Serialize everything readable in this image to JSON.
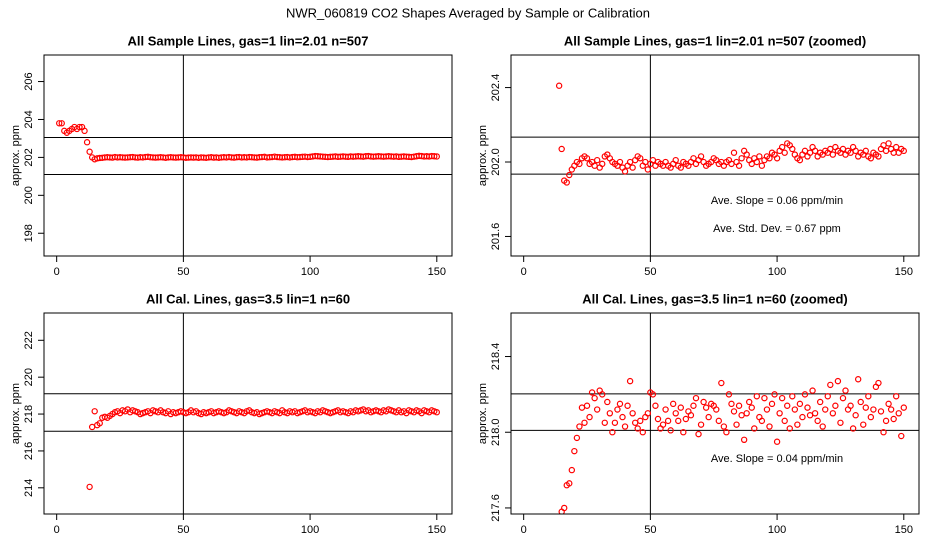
{
  "title": "NWR_060819  CO2 Shapes Averaged by Sample or Calibration",
  "chart_data": [
    {
      "type": "scatter",
      "title": "All Sample Lines, gas=1 lin=2.01 n=507",
      "ylabel": "approx. ppm",
      "color": "#ff0000",
      "xlim": [
        -5,
        156
      ],
      "ylim": [
        196.8,
        207.4
      ],
      "xticks": [
        0,
        50,
        100,
        150
      ],
      "yticks": [
        198,
        200,
        202,
        204,
        206
      ],
      "hlines": [
        203.05,
        201.1
      ],
      "vline": 50,
      "x": [
        1,
        2,
        3,
        4,
        5,
        6,
        7,
        8,
        9,
        10,
        11,
        12,
        13,
        14,
        15,
        16,
        17,
        18,
        19,
        20,
        21,
        22,
        23,
        24,
        25,
        26,
        27,
        28,
        29,
        30,
        31,
        32,
        33,
        34,
        35,
        36,
        37,
        38,
        39,
        40,
        41,
        42,
        43,
        44,
        45,
        46,
        47,
        48,
        49,
        50,
        51,
        52,
        53,
        54,
        55,
        56,
        57,
        58,
        59,
        60,
        61,
        62,
        63,
        64,
        65,
        66,
        67,
        68,
        69,
        70,
        71,
        72,
        73,
        74,
        75,
        76,
        77,
        78,
        79,
        80,
        81,
        82,
        83,
        84,
        85,
        86,
        87,
        88,
        89,
        90,
        91,
        92,
        93,
        94,
        95,
        96,
        97,
        98,
        99,
        100,
        101,
        102,
        103,
        104,
        105,
        106,
        107,
        108,
        109,
        110,
        111,
        112,
        113,
        114,
        115,
        116,
        117,
        118,
        119,
        120,
        121,
        122,
        123,
        124,
        125,
        126,
        127,
        128,
        129,
        130,
        131,
        132,
        133,
        134,
        135,
        136,
        137,
        138,
        139,
        140,
        141,
        142,
        143,
        144,
        145,
        146,
        147,
        148,
        149,
        150
      ],
      "values": [
        203.8,
        203.8,
        203.4,
        203.3,
        203.4,
        203.5,
        203.6,
        203.5,
        203.6,
        203.6,
        203.4,
        202.8,
        202.3,
        202.0,
        201.9,
        201.95,
        201.97,
        201.98,
        202.0,
        202.01,
        202.0,
        201.99,
        202.02,
        202.0,
        202.01,
        202.0,
        201.99,
        202.0,
        202.01,
        202.02,
        202.0,
        201.99,
        202.01,
        202.0,
        202.02,
        202.03,
        202.01,
        202.0,
        201.99,
        202.0,
        202.01,
        202.0,
        201.98,
        202.0,
        202.01,
        202.0,
        201.99,
        202.0,
        202.01,
        202.0,
        201.98,
        201.99,
        202.0,
        201.99,
        202.0,
        201.98,
        202.0,
        201.99,
        201.98,
        202.0,
        202.01,
        201.99,
        202.0,
        201.98,
        202.0,
        202.01,
        202.0,
        202.02,
        202.0,
        201.99,
        202.01,
        202.02,
        202.0,
        202.01,
        202.0,
        202.02,
        202.01,
        202.0,
        201.99,
        202.01,
        202.02,
        202.03,
        202.0,
        202.01,
        202.02,
        202.04,
        202.02,
        202.01,
        202.0,
        202.01,
        202.02,
        202.0,
        202.02,
        202.03,
        202.01,
        202.02,
        202.03,
        202.04,
        202.02,
        202.03,
        202.05,
        202.07,
        202.06,
        202.05,
        202.04,
        202.03,
        202.02,
        202.03,
        202.04,
        202.05,
        202.03,
        202.04,
        202.05,
        202.04,
        202.03,
        202.05,
        202.04,
        202.05,
        202.06,
        202.05,
        202.04,
        202.06,
        202.07,
        202.05,
        202.04,
        202.05,
        202.06,
        202.05,
        202.04,
        202.05,
        202.06,
        202.05,
        202.04,
        202.05,
        202.03,
        202.04,
        202.05,
        202.04,
        202.03,
        202.02,
        202.04,
        202.06,
        202.08,
        202.07,
        202.05,
        202.06,
        202.05,
        202.07,
        202.06,
        202.05
      ]
    },
    {
      "type": "scatter",
      "title": "All Sample Lines, gas=1 lin=2.01 n=507 (zoomed)",
      "ylabel": "approx. ppm",
      "color": "#ff0000",
      "xlim": [
        -5,
        156
      ],
      "ylim": [
        201.495,
        202.575
      ],
      "xticks": [
        0,
        50,
        100,
        150
      ],
      "yticks": [
        201.6,
        {
          "value": 202,
          "label": "202.0"
        },
        202.4
      ],
      "hlines": [
        202.134,
        201.935
      ],
      "vline": 50,
      "annotations": [
        "Ave. Slope =  0.06  ppm/min",
        "Ave. Std. Dev. =  0.67  ppm"
      ],
      "x": [
        14,
        15,
        16,
        17,
        18,
        19,
        20,
        21,
        22,
        23,
        24,
        25,
        26,
        27,
        28,
        29,
        30,
        31,
        32,
        33,
        34,
        35,
        36,
        37,
        38,
        39,
        40,
        41,
        42,
        43,
        44,
        45,
        46,
        47,
        48,
        49,
        50,
        51,
        52,
        53,
        54,
        55,
        56,
        57,
        58,
        59,
        60,
        61,
        62,
        63,
        64,
        65,
        66,
        67,
        68,
        69,
        70,
        71,
        72,
        73,
        74,
        75,
        76,
        77,
        78,
        79,
        80,
        81,
        82,
        83,
        84,
        85,
        86,
        87,
        88,
        89,
        90,
        91,
        92,
        93,
        94,
        95,
        96,
        97,
        98,
        99,
        100,
        101,
        102,
        103,
        104,
        105,
        106,
        107,
        108,
        109,
        110,
        111,
        112,
        113,
        114,
        115,
        116,
        117,
        118,
        119,
        120,
        121,
        122,
        123,
        124,
        125,
        126,
        127,
        128,
        129,
        130,
        131,
        132,
        133,
        134,
        135,
        136,
        137,
        138,
        139,
        140,
        141,
        142,
        143,
        144,
        145,
        146,
        147,
        148,
        149,
        150
      ],
      "values": [
        202.41,
        202.07,
        201.9,
        201.89,
        201.93,
        201.96,
        201.98,
        202.0,
        201.99,
        202.02,
        202.03,
        202.02,
        201.99,
        202.0,
        201.98,
        202.01,
        201.97,
        201.99,
        202.03,
        202.04,
        202.02,
        202.0,
        201.99,
        201.98,
        202.0,
        201.97,
        201.95,
        201.98,
        202.0,
        201.97,
        202.01,
        202.03,
        202.02,
        201.98,
        202.0,
        201.96,
        201.99,
        202.01,
        201.98,
        202.0,
        201.99,
        201.98,
        202.0,
        201.98,
        201.97,
        201.99,
        202.01,
        201.98,
        201.97,
        202.0,
        201.99,
        201.98,
        202.0,
        202.02,
        201.99,
        202.01,
        202.03,
        202.0,
        201.98,
        201.99,
        202.0,
        202.02,
        202.01,
        201.99,
        202.0,
        201.98,
        202.0,
        202.01,
        201.99,
        202.05,
        202.0,
        201.98,
        202.02,
        202.06,
        202.04,
        202.01,
        201.99,
        202.02,
        202.0,
        202.03,
        201.98,
        202.01,
        202.03,
        202.02,
        202.05,
        202.04,
        202.02,
        202.06,
        202.08,
        202.05,
        202.1,
        202.09,
        202.07,
        202.04,
        202.02,
        202.01,
        202.04,
        202.06,
        202.03,
        202.05,
        202.08,
        202.06,
        202.03,
        202.05,
        202.04,
        202.06,
        202.05,
        202.07,
        202.04,
        202.08,
        202.06,
        202.05,
        202.07,
        202.04,
        202.06,
        202.05,
        202.08,
        202.06,
        202.03,
        202.05,
        202.04,
        202.06,
        202.03,
        202.02,
        202.05,
        202.04,
        202.03,
        202.07,
        202.09,
        202.06,
        202.1,
        202.07,
        202.05,
        202.08,
        202.05,
        202.07,
        202.06
      ]
    },
    {
      "type": "scatter",
      "title": "All Cal. Lines, gas=3.5 lin=1 n=60",
      "ylabel": "approx. ppm",
      "color": "#ff0000",
      "xlim": [
        -5,
        156
      ],
      "ylim": [
        212.58,
        223.48
      ],
      "xticks": [
        0,
        50,
        100,
        150
      ],
      "yticks": [
        214,
        216,
        218,
        220,
        222
      ],
      "hlines": [
        219.1,
        217.07
      ],
      "vline": 50,
      "x": [
        13,
        14,
        15,
        16,
        17,
        18,
        19,
        20,
        21,
        22,
        23,
        24,
        25,
        26,
        27,
        28,
        29,
        30,
        31,
        32,
        33,
        34,
        35,
        36,
        37,
        38,
        39,
        40,
        41,
        42,
        43,
        44,
        45,
        46,
        47,
        48,
        49,
        50,
        51,
        52,
        53,
        54,
        55,
        56,
        57,
        58,
        59,
        60,
        61,
        62,
        63,
        64,
        65,
        66,
        67,
        68,
        69,
        70,
        71,
        72,
        73,
        74,
        75,
        76,
        77,
        78,
        79,
        80,
        81,
        82,
        83,
        84,
        85,
        86,
        87,
        88,
        89,
        90,
        91,
        92,
        93,
        94,
        95,
        96,
        97,
        98,
        99,
        100,
        101,
        102,
        103,
        104,
        105,
        106,
        107,
        108,
        109,
        110,
        111,
        112,
        113,
        114,
        115,
        116,
        117,
        118,
        119,
        120,
        121,
        122,
        123,
        124,
        125,
        126,
        127,
        128,
        129,
        130,
        131,
        132,
        133,
        134,
        135,
        136,
        137,
        138,
        139,
        140,
        141,
        142,
        143,
        144,
        145,
        146,
        147,
        148,
        149,
        150
      ],
      "values": [
        214.05,
        217.3,
        218.15,
        217.4,
        217.5,
        217.8,
        217.85,
        217.8,
        217.9,
        218.0,
        218.1,
        218.15,
        218.05,
        218.2,
        218.15,
        218.25,
        218.1,
        218.2,
        218.15,
        218.1,
        218.0,
        218.05,
        218.1,
        218.15,
        218.05,
        218.2,
        218.15,
        218.1,
        218.2,
        218.1,
        218.05,
        218.15,
        218.0,
        218.1,
        218.05,
        218.1,
        218.15,
        218.1,
        218.05,
        218.1,
        218.2,
        218.1,
        218.15,
        218.05,
        218.0,
        218.1,
        218.05,
        218.1,
        218.15,
        218.05,
        218.1,
        218.15,
        218.1,
        218.05,
        218.1,
        218.2,
        218.15,
        218.1,
        218.05,
        218.15,
        218.1,
        218.05,
        218.15,
        218.2,
        218.1,
        218.05,
        218.1,
        218.0,
        218.05,
        218.1,
        218.15,
        218.1,
        218.05,
        218.15,
        218.1,
        218.05,
        218.2,
        218.1,
        218.05,
        218.15,
        218.1,
        218.15,
        218.05,
        218.1,
        218.15,
        218.2,
        218.1,
        218.15,
        218.1,
        218.05,
        218.15,
        218.1,
        218.2,
        218.15,
        218.1,
        218.05,
        218.1,
        218.15,
        218.2,
        218.1,
        218.15,
        218.1,
        218.05,
        218.15,
        218.1,
        218.2,
        218.15,
        218.2,
        218.25,
        218.15,
        218.2,
        218.1,
        218.15,
        218.2,
        218.15,
        218.1,
        218.2,
        218.15,
        218.25,
        218.2,
        218.15,
        218.1,
        218.2,
        218.1,
        218.15,
        218.05,
        218.2,
        218.15,
        218.1,
        218.2,
        218.15,
        218.05,
        218.2,
        218.15,
        218.1,
        218.2,
        218.15,
        218.1
      ]
    },
    {
      "type": "scatter",
      "title": "All Cal. Lines, gas=3.5 lin=1 n=60 (zoomed)",
      "ylabel": "approx. ppm",
      "color": "#ff0000",
      "xlim": [
        -5,
        156
      ],
      "ylim": [
        217.568,
        218.63
      ],
      "xticks": [
        0,
        50,
        100,
        150
      ],
      "yticks": [
        217.6,
        {
          "value": 218,
          "label": "218.0"
        },
        218.4
      ],
      "hlines": [
        218.203,
        218.01
      ],
      "vline": 50,
      "annotations": [
        "Ave. Slope =  0.04  ppm/min"
      ],
      "x": [
        15,
        16,
        17,
        18,
        19,
        20,
        21,
        22,
        23,
        24,
        25,
        26,
        27,
        28,
        29,
        30,
        31,
        32,
        33,
        34,
        35,
        36,
        37,
        38,
        39,
        40,
        41,
        42,
        43,
        44,
        45,
        46,
        47,
        48,
        49,
        50,
        51,
        52,
        53,
        54,
        55,
        56,
        57,
        58,
        59,
        60,
        61,
        62,
        63,
        64,
        65,
        66,
        67,
        68,
        69,
        70,
        71,
        72,
        73,
        74,
        75,
        76,
        77,
        78,
        79,
        80,
        81,
        82,
        83,
        84,
        85,
        86,
        87,
        88,
        89,
        90,
        91,
        92,
        93,
        94,
        95,
        96,
        97,
        98,
        99,
        100,
        101,
        102,
        103,
        104,
        105,
        106,
        107,
        108,
        109,
        110,
        111,
        112,
        113,
        114,
        115,
        116,
        117,
        118,
        119,
        120,
        121,
        122,
        123,
        124,
        125,
        126,
        127,
        128,
        129,
        130,
        131,
        132,
        133,
        134,
        135,
        136,
        137,
        138,
        139,
        140,
        141,
        142,
        143,
        144,
        145,
        146,
        147,
        148,
        149,
        150
      ],
      "values": [
        217.58,
        217.6,
        217.72,
        217.73,
        217.8,
        217.9,
        217.97,
        218.03,
        218.13,
        218.05,
        218.14,
        218.08,
        218.21,
        218.18,
        218.12,
        218.22,
        218.2,
        218.05,
        218.16,
        218.1,
        218.0,
        218.05,
        218.12,
        218.15,
        218.08,
        218.03,
        218.14,
        218.27,
        218.1,
        218.05,
        218.02,
        218.06,
        218.0,
        218.08,
        218.1,
        218.21,
        218.2,
        218.14,
        218.07,
        218.02,
        218.04,
        218.12,
        218.06,
        218.01,
        218.15,
        218.1,
        218.06,
        218.13,
        218.0,
        218.07,
        218.11,
        218.09,
        218.14,
        218.18,
        217.99,
        218.04,
        218.16,
        218.13,
        218.08,
        218.15,
        218.14,
        218.12,
        218.06,
        218.26,
        218.03,
        218.0,
        218.2,
        218.15,
        218.11,
        218.04,
        218.14,
        218.09,
        217.96,
        218.1,
        218.16,
        218.13,
        218.02,
        218.19,
        218.08,
        218.06,
        218.18,
        218.12,
        218.03,
        218.15,
        218.2,
        217.95,
        218.1,
        218.18,
        218.06,
        218.14,
        218.02,
        218.19,
        218.12,
        218.04,
        218.15,
        218.08,
        218.2,
        218.13,
        218.09,
        218.22,
        218.1,
        218.06,
        218.16,
        218.03,
        218.12,
        218.19,
        218.25,
        218.1,
        218.14,
        218.27,
        218.05,
        218.18,
        218.22,
        218.12,
        218.14,
        218.02,
        218.09,
        218.28,
        218.16,
        218.04,
        218.13,
        218.19,
        218.08,
        218.12,
        218.24,
        218.26,
        218.11,
        218.0,
        218.06,
        218.15,
        218.12,
        218.07,
        218.19,
        218.1,
        217.98,
        218.13
      ]
    }
  ]
}
